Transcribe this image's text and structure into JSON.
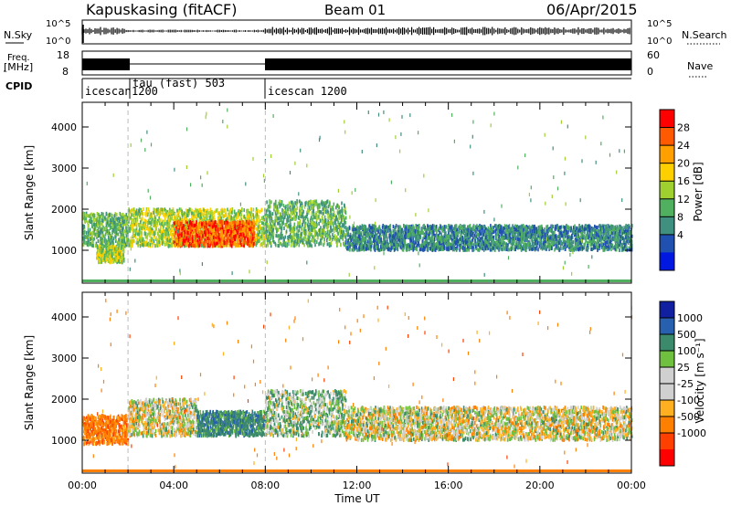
{
  "header": {
    "title": "Kapuskasing (fitACF)",
    "beam": "Beam 01",
    "date": "06/Apr/2015"
  },
  "side_panels": {
    "nsky_label": "N.Sky",
    "nsky_ticks": [
      "10^5",
      "10^0"
    ],
    "nsearch_label": "N.Search",
    "nsearch_ticks": [
      "10^5",
      "10^0"
    ],
    "freq_label_line1": "Freq.",
    "freq_label_line2": "[MHz]",
    "freq_ticks": [
      "18",
      "8"
    ],
    "nave_label": "Nave",
    "nave_ticks": [
      "60",
      "0"
    ],
    "cpid_label": "CPID"
  },
  "cpid_segments": [
    {
      "name": "icescan",
      "value": "1200",
      "start_hour": 0
    },
    {
      "name": "tau (fast)",
      "value": "503",
      "start_hour": 2
    },
    {
      "name": "icescan",
      "value": "1200",
      "start_hour": 8
    }
  ],
  "cpid_texts": {
    "seg1_name": "icescan",
    "seg1_value": "1200",
    "seg2": "tau (fast) 503",
    "seg3": "icescan 1200"
  },
  "axes": {
    "ylabel": "Slant Range [km]",
    "xlabel": "Time UT",
    "yticks": [
      "4000",
      "3000",
      "2000",
      "1000"
    ],
    "xticks": [
      "00:00",
      "04:00",
      "08:00",
      "12:00",
      "16:00",
      "20:00",
      "00:00"
    ]
  },
  "power_scale": {
    "label": "Power [dB]",
    "ticks": [
      "28",
      "24",
      "20",
      "16",
      "12",
      "8",
      "4"
    ],
    "colors": [
      "#ff0000",
      "#ff5a00",
      "#ffa000",
      "#ffd000",
      "#a0d030",
      "#50b060",
      "#409080",
      "#2050b0",
      "#0018e0"
    ]
  },
  "velocity_scale": {
    "label": "Velocity [m s⁻¹]",
    "ticks": [
      "1000",
      "500",
      "100",
      "25",
      "-25",
      "-100",
      "-500",
      "-1000"
    ],
    "colors": [
      "#1020a0",
      "#2860b0",
      "#3c8a6c",
      "#70c040",
      "#d0d0d0",
      "#d0d0d0",
      "#ffb020",
      "#ff8000",
      "#ff4000",
      "#ff0000"
    ]
  },
  "chart_data": {
    "type": "heatmap",
    "title": "Kapuskasing (fitACF)",
    "xlabel": "Time UT",
    "ylabel": "Slant Range [km]",
    "xlim": [
      0,
      24
    ],
    "ylim": [
      200,
      4600
    ],
    "panels": [
      {
        "quantity": "Power [dB]",
        "colorbar_ticks": [
          4,
          8,
          12,
          16,
          20,
          24,
          28
        ],
        "echo_regions": [
          {
            "t": [
              0.0,
              2.0
            ],
            "range_km": [
              1100,
              1900
            ],
            "level": 12
          },
          {
            "t": [
              0.6,
              1.8
            ],
            "range_km": [
              700,
              1100
            ],
            "level": 16
          },
          {
            "t": [
              2.0,
              8.0
            ],
            "range_km": [
              1100,
              2000
            ],
            "level": 16
          },
          {
            "t": [
              4.0,
              7.5
            ],
            "range_km": [
              1100,
              1700
            ],
            "level": 28
          },
          {
            "t": [
              8.0,
              11.5
            ],
            "range_km": [
              1100,
              2200
            ],
            "level": 12
          },
          {
            "t": [
              11.5,
              24.0
            ],
            "range_km": [
              1000,
              1600
            ],
            "level": 8
          }
        ]
      },
      {
        "quantity": "Velocity [m s⁻¹]",
        "colorbar_ticks": [
          -1000,
          -500,
          -100,
          -25,
          25,
          100,
          500,
          1000
        ],
        "echo_regions": [
          {
            "t": [
              0.0,
              2.0
            ],
            "range_km": [
              900,
              1600
            ],
            "level": -300
          },
          {
            "t": [
              2.0,
              5.0
            ],
            "range_km": [
              1100,
              2000
            ],
            "level": 0
          },
          {
            "t": [
              5.0,
              8.0
            ],
            "range_km": [
              1100,
              1700
            ],
            "level": 300
          },
          {
            "t": [
              8.0,
              11.5
            ],
            "range_km": [
              1100,
              2200
            ],
            "level": 100
          },
          {
            "t": [
              11.5,
              24.0
            ],
            "range_km": [
              1000,
              1800
            ],
            "level": 0
          }
        ]
      }
    ],
    "vertical_markers_hours": [
      2,
      8
    ]
  }
}
